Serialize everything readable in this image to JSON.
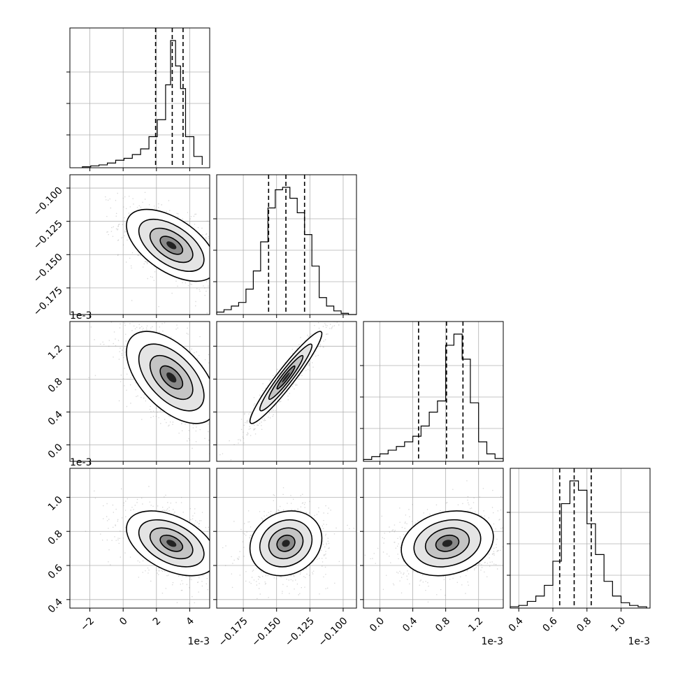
{
  "chart_data": {
    "type": "corner",
    "grid": true,
    "params": [
      {
        "scale": 0.001,
        "offset_label": "1e-3",
        "range": [
          -3.2,
          5.2
        ],
        "ticks": [
          -2,
          0,
          2,
          4
        ],
        "tick_labels": [
          "−2",
          "0",
          "2",
          "4"
        ],
        "quantiles": [
          1.95,
          2.95,
          3.6
        ],
        "mean": 2.9,
        "sd": 1.35,
        "skew": "left"
      },
      {
        "scale": 1,
        "offset_label": "",
        "range": [
          -0.195,
          -0.09
        ],
        "ticks": [
          -0.175,
          -0.15,
          -0.125,
          -0.1
        ],
        "tick_labels": [
          "−0.175",
          "−0.150",
          "−0.125",
          "−0.100"
        ],
        "quantiles": [
          -0.156,
          -0.143,
          -0.129
        ],
        "mean": -0.143,
        "sd": 0.0135,
        "skew": "none"
      },
      {
        "scale": 0.001,
        "offset_label": "1e-3",
        "range": [
          -0.2,
          1.5
        ],
        "ticks": [
          0.0,
          0.4,
          0.8,
          1.2
        ],
        "tick_labels": [
          "0.0",
          "0.4",
          "0.8",
          "1.2"
        ],
        "quantiles": [
          0.47,
          0.81,
          1.01
        ],
        "mean": 0.82,
        "sd": 0.28,
        "skew": "left"
      },
      {
        "scale": 0.001,
        "offset_label": "1e-3",
        "range": [
          0.35,
          1.17
        ],
        "ticks": [
          0.4,
          0.6,
          0.8,
          1.0
        ],
        "tick_labels": [
          "0.4",
          "0.6",
          "0.8",
          "1.0"
        ],
        "quantiles": [
          0.64,
          0.725,
          0.825
        ],
        "mean": 0.73,
        "sd": 0.095,
        "skew": "none"
      }
    ],
    "histograms": [
      {
        "param": 0,
        "bins": [
          -2.45,
          -1.95,
          -1.45,
          -0.95,
          -0.45,
          0.05,
          0.55,
          1.05,
          1.55,
          2.05,
          2.55,
          2.85,
          3.15,
          3.45,
          3.75,
          4.25,
          4.75
        ],
        "counts": [
          1,
          2,
          3,
          5,
          8,
          10,
          14,
          20,
          33,
          51,
          88,
          135,
          108,
          84,
          33,
          12,
          3
        ]
      },
      {
        "param": 1,
        "bins": [
          -0.195,
          -0.1895,
          -0.184,
          -0.1785,
          -0.173,
          -0.1675,
          -0.162,
          -0.1565,
          -0.151,
          -0.1455,
          -0.14,
          -0.1345,
          -0.129,
          -0.1235,
          -0.118,
          -0.1125,
          -0.107,
          -0.1015,
          -0.096,
          -0.09
        ],
        "counts": [
          2,
          4,
          7,
          10,
          21,
          36,
          60,
          88,
          103,
          105,
          96,
          84,
          66,
          40,
          14,
          7,
          3,
          1,
          0
        ]
      },
      {
        "param": 2,
        "bins": [
          -0.2,
          -0.1,
          0.0,
          0.1,
          0.2,
          0.3,
          0.4,
          0.5,
          0.6,
          0.7,
          0.8,
          0.9,
          1.0,
          1.1,
          1.2,
          1.3,
          1.4,
          1.5
        ],
        "counts": [
          2,
          5,
          8,
          12,
          16,
          21,
          27,
          38,
          53,
          65,
          125,
          137,
          110,
          63,
          21,
          8,
          3
        ]
      },
      {
        "param": 3,
        "bins": [
          0.35,
          0.4,
          0.45,
          0.5,
          0.55,
          0.6,
          0.65,
          0.7,
          0.75,
          0.8,
          0.85,
          0.9,
          0.95,
          1.0,
          1.05,
          1.1,
          1.15
        ],
        "counts": [
          1,
          2,
          5,
          9,
          17,
          35,
          78,
          95,
          88,
          63,
          40,
          20,
          9,
          4,
          2,
          1
        ]
      }
    ],
    "pairs": [
      {
        "x_param": 0,
        "y_param": 1,
        "correlation": -0.55
      },
      {
        "x_param": 0,
        "y_param": 2,
        "correlation": -0.55
      },
      {
        "x_param": 1,
        "y_param": 2,
        "correlation": 0.95
      },
      {
        "x_param": 0,
        "y_param": 3,
        "correlation": -0.45
      },
      {
        "x_param": 1,
        "y_param": 3,
        "correlation": 0.15
      },
      {
        "x_param": 2,
        "y_param": 3,
        "correlation": 0.2
      }
    ],
    "colors": {
      "line": "#000000",
      "grid": "#b0b0b0",
      "points": "#888888"
    }
  }
}
